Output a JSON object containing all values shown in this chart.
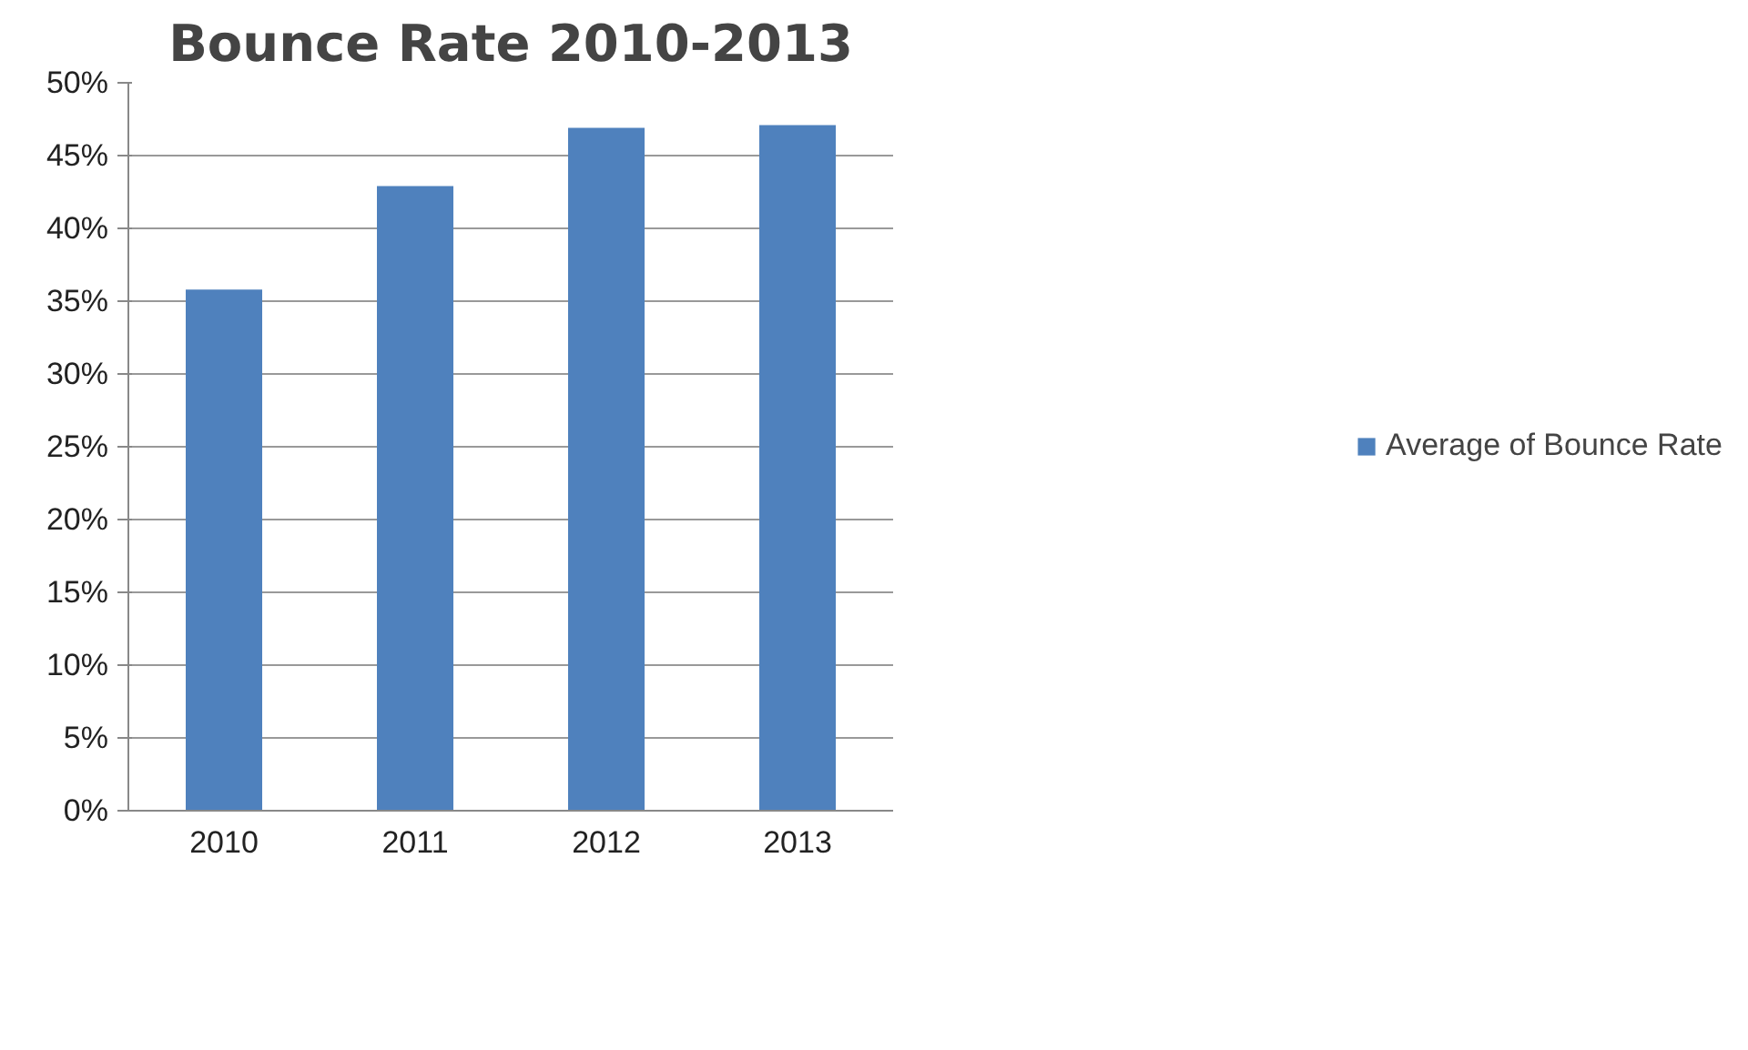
{
  "chart_data": {
    "type": "bar",
    "title": "Bounce Rate 2010-2013",
    "categories": [
      "2010",
      "2011",
      "2012",
      "2013"
    ],
    "series": [
      {
        "name": "Average of Bounce Rate",
        "color": "#4f81bd",
        "values": [
          35.8,
          42.9,
          46.9,
          47.1
        ]
      }
    ],
    "ylim": [
      0,
      50
    ],
    "yticks": [
      {
        "value": 0,
        "label": "0%"
      },
      {
        "value": 5,
        "label": "5%"
      },
      {
        "value": 10,
        "label": "10%"
      },
      {
        "value": 15,
        "label": "15%"
      },
      {
        "value": 20,
        "label": "20%"
      },
      {
        "value": 25,
        "label": "25%"
      },
      {
        "value": 30,
        "label": "30%"
      },
      {
        "value": 35,
        "label": "35%"
      },
      {
        "value": 40,
        "label": "40%"
      },
      {
        "value": 45,
        "label": "45%"
      },
      {
        "value": 50,
        "label": "50%"
      }
    ],
    "grid": "y",
    "legend": "right"
  }
}
